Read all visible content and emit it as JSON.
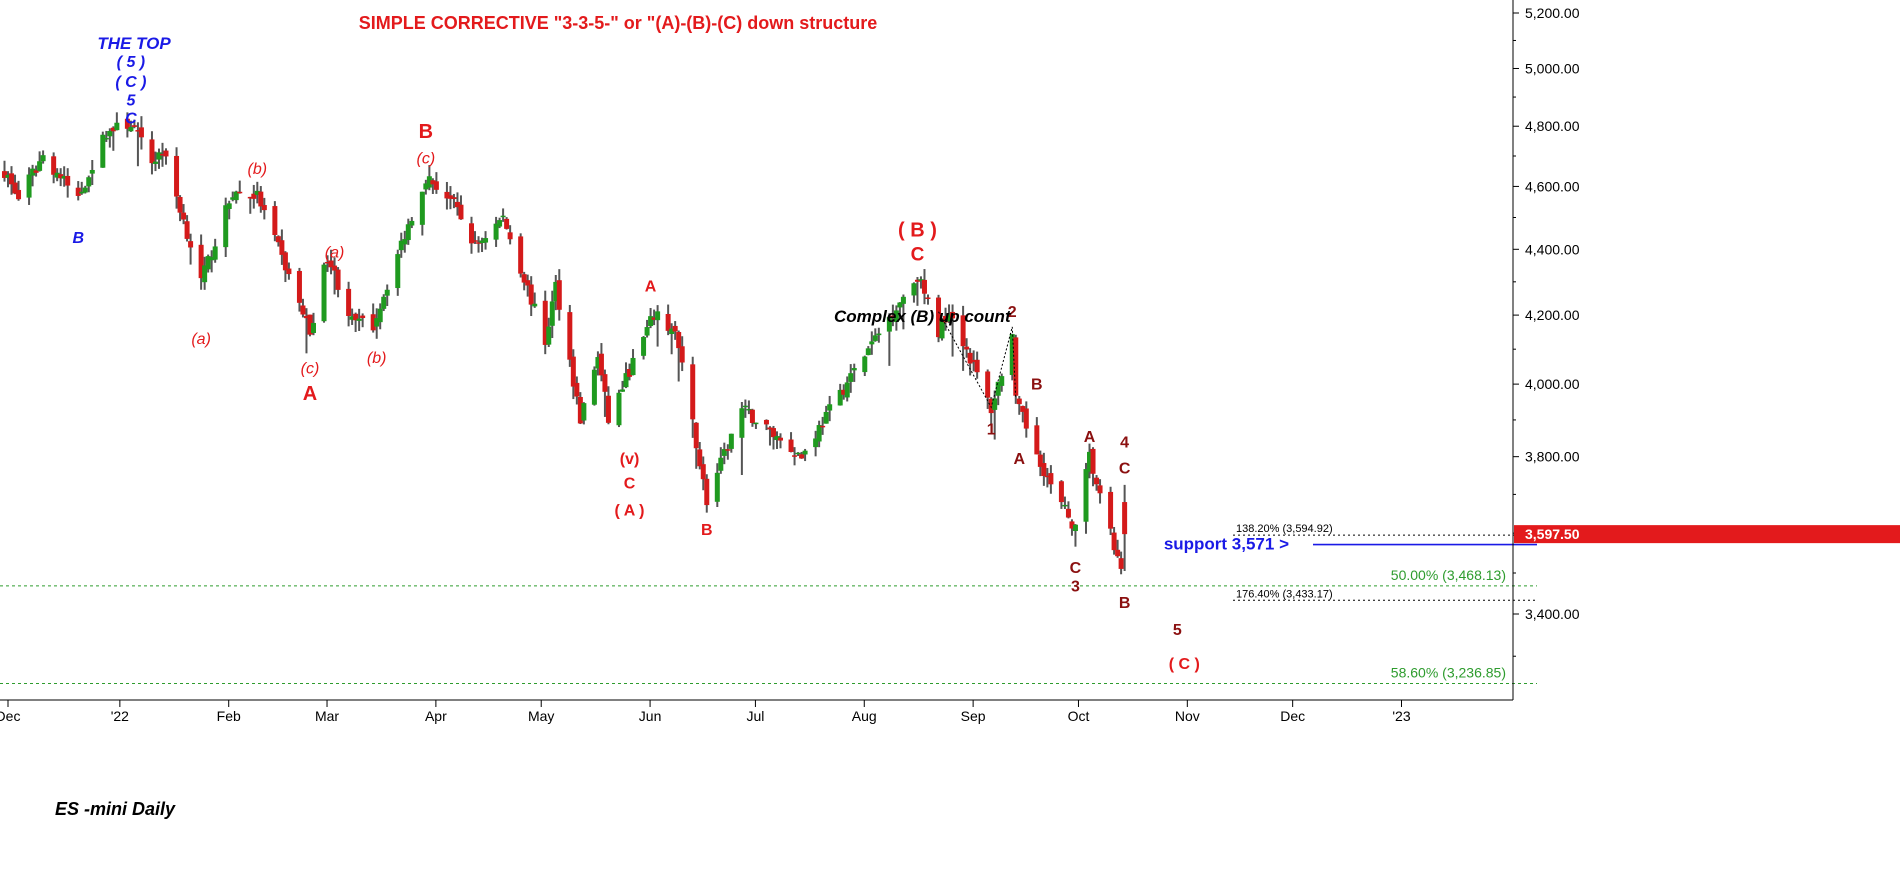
{
  "chart_data": {
    "type": "candlestick",
    "title": "SIMPLE CORRECTIVE \"3-3-5-\" or \"(A)-(B)-(C) down structure",
    "chart_label": "ES -mini Daily",
    "subtitle_note": "Complex (B) up count",
    "x_ticks": [
      "Dec",
      "'22",
      "Feb",
      "Mar",
      "Apr",
      "May",
      "Jun",
      "Jul",
      "Aug",
      "Sep",
      "Oct",
      "Nov",
      "Dec",
      "'23"
    ],
    "y_ticks": [
      "5,200.00",
      "5,000.00",
      "4,800.00",
      "4,600.00",
      "4,400.00",
      "4,200.00",
      "4,000.00",
      "3,800.00",
      "3,400.00"
    ],
    "y_tick_values": [
      5200,
      5000,
      4800,
      4600,
      4400,
      4200,
      4000,
      3800,
      3400
    ],
    "y_scale": "log",
    "ylim": [
      3200,
      5250
    ],
    "last_price": "3,597.50",
    "last_price_value": 3597.5,
    "colors": {
      "up": "#1f9a1f",
      "down": "#d41a1a",
      "wick": "#555555",
      "support": "#1a1ae6",
      "fib_green": "#2e9c2e",
      "fib_black": "#000000"
    },
    "price_path": [
      [
        "2021-11-29",
        4650
      ],
      [
        "2021-12-03",
        4560
      ],
      [
        "2021-12-10",
        4700
      ],
      [
        "2021-12-20",
        4560
      ],
      [
        "2021-12-28",
        4780
      ],
      [
        "2022-01-04",
        4810
      ],
      [
        "2022-01-10",
        4680
      ],
      [
        "2022-01-13",
        4720
      ],
      [
        "2022-01-24",
        4300
      ],
      [
        "2022-02-02",
        4580
      ],
      [
        "2022-02-09",
        4570
      ],
      [
        "2022-02-24",
        4150
      ],
      [
        "2022-03-01",
        4380
      ],
      [
        "2022-03-08",
        4180
      ],
      [
        "2022-03-14",
        4170
      ],
      [
        "2022-03-29",
        4630
      ],
      [
        "2022-04-05",
        4560
      ],
      [
        "2022-04-12",
        4410
      ],
      [
        "2022-04-20",
        4500
      ],
      [
        "2022-05-02",
        4120
      ],
      [
        "2022-05-05",
        4290
      ],
      [
        "2022-05-12",
        3900
      ],
      [
        "2022-05-17",
        4080
      ],
      [
        "2022-05-20",
        3900
      ],
      [
        "2022-06-02",
        4200
      ],
      [
        "2022-06-08",
        4150
      ],
      [
        "2022-06-17",
        3680
      ],
      [
        "2022-06-27",
        3930
      ],
      [
        "2022-07-14",
        3800
      ],
      [
        "2022-08-16",
        4320
      ],
      [
        "2022-08-22",
        4150
      ],
      [
        "2022-08-25",
        4220
      ],
      [
        "2022-09-06",
        3930
      ],
      [
        "2022-09-12",
        4140
      ],
      [
        "2022-09-13",
        3950
      ],
      [
        "2022-09-23",
        3720
      ],
      [
        "2022-09-30",
        3610
      ],
      [
        "2022-10-04",
        3800
      ],
      [
        "2022-10-07",
        3690
      ],
      [
        "2022-10-13",
        3500
      ],
      [
        "2022-10-14",
        3597
      ]
    ],
    "horizontal_lines": [
      {
        "label": "138.20% (3,594.92)",
        "value": 3594.92,
        "style": "dotted-black"
      },
      {
        "label": "support 3,571 >",
        "value": 3571,
        "style": "solid-blue"
      },
      {
        "label": "50.00% (3,468.13)",
        "value": 3468.13,
        "style": "dotted-green"
      },
      {
        "label": "176.40% (3,433.17)",
        "value": 3433.17,
        "style": "dotted-black"
      },
      {
        "label": "58.60% (3,236.85)",
        "value": 3236.85,
        "style": "dotted-green"
      }
    ],
    "wave_labels": [
      {
        "text": "THE TOP",
        "date": "2022-01-04",
        "price": 5070,
        "color": "blue",
        "italic": true,
        "size": 17
      },
      {
        "text": "( 5 )",
        "date": "2022-01-04",
        "price": 5005,
        "color": "blue",
        "italic": true,
        "size": 16
      },
      {
        "text": "( C )",
        "date": "2022-01-04",
        "price": 4935,
        "color": "blue",
        "italic": true,
        "size": 16
      },
      {
        "text": "5",
        "date": "2022-01-04",
        "price": 4870,
        "color": "blue",
        "italic": true,
        "size": 16
      },
      {
        "text": "C",
        "date": "2022-01-04",
        "price": 4810,
        "color": "blue",
        "italic": true,
        "size": 16
      },
      {
        "text": "B",
        "date": "2021-12-20",
        "price": 4420,
        "color": "blue",
        "italic": true,
        "size": 16
      },
      {
        "text": "(b)",
        "date": "2022-02-09",
        "price": 4640,
        "color": "red",
        "italic": true,
        "size": 16
      },
      {
        "text": "(a)",
        "date": "2022-01-24",
        "price": 4115,
        "color": "red",
        "italic": true,
        "size": 16
      },
      {
        "text": "(a)",
        "date": "2022-03-03",
        "price": 4375,
        "color": "red",
        "italic": true,
        "size": 16
      },
      {
        "text": "(c)",
        "date": "2022-02-24",
        "price": 4030,
        "color": "red",
        "italic": true,
        "size": 16
      },
      {
        "text": "A",
        "date": "2022-02-24",
        "price": 3955,
        "color": "red",
        "italic": false,
        "size": 20
      },
      {
        "text": "(b)",
        "date": "2022-03-15",
        "price": 4060,
        "color": "red",
        "italic": true,
        "size": 16
      },
      {
        "text": "B",
        "date": "2022-03-29",
        "price": 4760,
        "color": "red",
        "italic": false,
        "size": 20
      },
      {
        "text": "(c)",
        "date": "2022-03-29",
        "price": 4675,
        "color": "red",
        "italic": true,
        "size": 16
      },
      {
        "text": "A",
        "date": "2022-06-01",
        "price": 4270,
        "color": "red",
        "italic": false,
        "size": 16
      },
      {
        "text": "(v)",
        "date": "2022-05-26",
        "price": 3780,
        "color": "red",
        "italic": false,
        "size": 16
      },
      {
        "text": "C",
        "date": "2022-05-26",
        "price": 3715,
        "color": "red",
        "italic": false,
        "size": 16
      },
      {
        "text": "( A )",
        "date": "2022-05-26",
        "price": 3645,
        "color": "red",
        "italic": false,
        "size": 16
      },
      {
        "text": "B",
        "date": "2022-06-17",
        "price": 3595,
        "color": "red",
        "italic": false,
        "size": 16
      },
      {
        "text": "( B )",
        "date": "2022-08-16",
        "price": 4440,
        "color": "red",
        "italic": false,
        "size": 20
      },
      {
        "text": "C",
        "date": "2022-08-16",
        "price": 4365,
        "color": "red",
        "italic": false,
        "size": 19
      },
      {
        "text": "2",
        "date": "2022-09-12",
        "price": 4195,
        "color": "dark",
        "italic": false,
        "size": 16
      },
      {
        "text": "1",
        "date": "2022-09-06",
        "price": 3860,
        "color": "dark",
        "italic": false,
        "size": 16
      },
      {
        "text": "B",
        "date": "2022-09-19",
        "price": 3985,
        "color": "dark",
        "italic": false,
        "size": 16
      },
      {
        "text": "A",
        "date": "2022-09-14",
        "price": 3780,
        "color": "dark",
        "italic": false,
        "size": 16
      },
      {
        "text": "A",
        "date": "2022-10-04",
        "price": 3840,
        "color": "dark",
        "italic": false,
        "size": 16
      },
      {
        "text": "4",
        "date": "2022-10-14",
        "price": 3825,
        "color": "dark",
        "italic": false,
        "size": 16
      },
      {
        "text": "C",
        "date": "2022-10-14",
        "price": 3755,
        "color": "dark",
        "italic": false,
        "size": 16
      },
      {
        "text": "C",
        "date": "2022-09-30",
        "price": 3500,
        "color": "dark",
        "italic": false,
        "size": 16
      },
      {
        "text": "3",
        "date": "2022-09-30",
        "price": 3455,
        "color": "dark",
        "italic": false,
        "size": 16
      },
      {
        "text": "B",
        "date": "2022-10-14",
        "price": 3415,
        "color": "dark",
        "italic": false,
        "size": 16
      },
      {
        "text": "5",
        "date": "2022-10-29",
        "price": 3350,
        "color": "dark",
        "italic": false,
        "size": 16
      },
      {
        "text": "( C )",
        "date": "2022-10-31",
        "price": 3270,
        "color": "red",
        "italic": false,
        "size": 16
      }
    ]
  }
}
